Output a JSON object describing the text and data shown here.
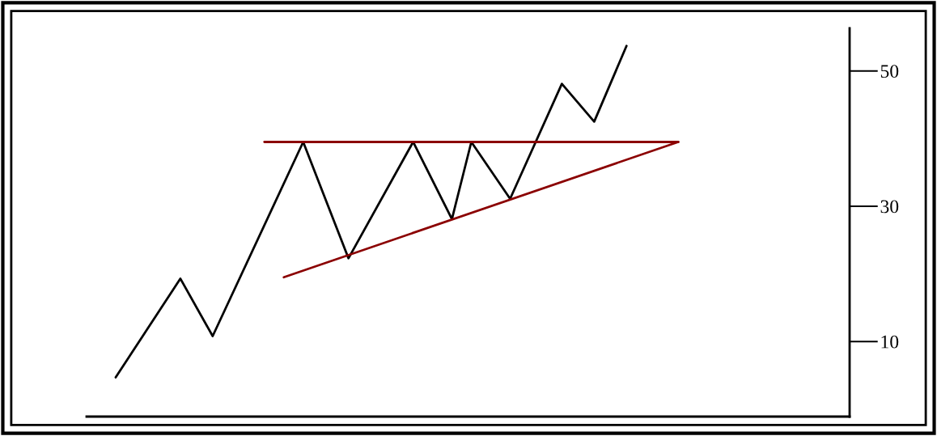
{
  "chart_data": {
    "type": "line",
    "categories": [
      null,
      null,
      null,
      null,
      null,
      null,
      null,
      null,
      null,
      null,
      null,
      null,
      null,
      null,
      null,
      null,
      null,
      null,
      null,
      null,
      null,
      null,
      null,
      null,
      null,
      null,
      null,
      null,
      null,
      null,
      null,
      null,
      null,
      null,
      null,
      null,
      null,
      null,
      null,
      null,
      null,
      null,
      null,
      null,
      null,
      null,
      null,
      null,
      null,
      null,
      null,
      null,
      null,
      null,
      null,
      null,
      null,
      null,
      null,
      null,
      null,
      null,
      null,
      null,
      null,
      null,
      null,
      null,
      null,
      null,
      null,
      null,
      null,
      null,
      null,
      null,
      null,
      null,
      null,
      null,
      null,
      null,
      null,
      null,
      null,
      null,
      null,
      null,
      null,
      null,
      null,
      null,
      null,
      null,
      null,
      null,
      null,
      null,
      null,
      null,
      null,
      null,
      null,
      null,
      null,
      null,
      null,
      null,
      null,
      null,
      null,
      null,
      null,
      null,
      null,
      null,
      null,
      null
    ],
    "series": [
      {
        "color": "#000000",
        "values": [
          null,
          null,
          null,
          null,
          4.7,
          null,
          null,
          null,
          null,
          null,
          null,
          null,
          null,
          null,
          19.3,
          null,
          null,
          null,
          null,
          10.8,
          null,
          null,
          null,
          null,
          null,
          null,
          null,
          null,
          null,
          null,
          null,
          null,
          null,
          39.5,
          null,
          null,
          null,
          null,
          null,
          null,
          22.3,
          null,
          null,
          null,
          null,
          null,
          null,
          null,
          null,
          null,
          39.5,
          null,
          null,
          null,
          null,
          null,
          28.1,
          null,
          null,
          39.5,
          null,
          null,
          null,
          null,
          null,
          31.1,
          null,
          null,
          null,
          null,
          null,
          null,
          null,
          48.1,
          null,
          null,
          null,
          null,
          42.5,
          null,
          null,
          null,
          null,
          53.7,
          null,
          null,
          null,
          null,
          null,
          null,
          null,
          null,
          null,
          null,
          null,
          null,
          null,
          null,
          null,
          null,
          null,
          null,
          null,
          null,
          null,
          null,
          null,
          null,
          null,
          null,
          null,
          null,
          null,
          null,
          null,
          null,
          null,
          null
        ]
      },
      {
        "color": "#8b0000",
        "values": [
          null,
          null,
          null,
          null,
          null,
          null,
          null,
          null,
          null,
          null,
          null,
          null,
          null,
          null,
          null,
          null,
          null,
          null,
          null,
          null,
          null,
          null,
          null,
          null,
          null,
          null,
          null,
          39.5,
          null,
          null,
          null,
          null,
          null,
          null,
          null,
          null,
          null,
          null,
          null,
          null,
          null,
          null,
          null,
          null,
          null,
          null,
          null,
          null,
          null,
          null,
          null,
          null,
          null,
          null,
          null,
          null,
          null,
          null,
          null,
          null,
          null,
          null,
          null,
          null,
          null,
          null,
          null,
          null,
          null,
          null,
          null,
          null,
          null,
          null,
          null,
          null,
          null,
          null,
          null,
          null,
          null,
          null,
          null,
          null,
          null,
          null,
          null,
          null,
          null,
          null,
          null,
          39.5,
          null,
          null,
          null,
          null,
          null,
          null,
          null,
          null,
          null,
          null,
          null,
          null,
          null,
          null,
          null,
          null,
          null,
          null,
          null,
          null,
          null,
          null,
          null,
          null,
          null,
          null
        ]
      },
      {
        "color": "#8b0000",
        "values": [
          null,
          null,
          null,
          null,
          null,
          null,
          null,
          null,
          null,
          null,
          null,
          null,
          null,
          null,
          null,
          null,
          null,
          null,
          null,
          null,
          null,
          null,
          null,
          null,
          null,
          null,
          null,
          null,
          null,
          null,
          19.5,
          null,
          null,
          null,
          null,
          null,
          null,
          null,
          null,
          null,
          null,
          null,
          null,
          null,
          null,
          null,
          null,
          null,
          null,
          null,
          null,
          null,
          null,
          null,
          null,
          null,
          null,
          null,
          null,
          null,
          null,
          null,
          null,
          null,
          null,
          null,
          null,
          null,
          null,
          null,
          null,
          null,
          null,
          null,
          null,
          null,
          null,
          null,
          null,
          null,
          null,
          null,
          null,
          null,
          null,
          null,
          null,
          null,
          null,
          null,
          null,
          39.5,
          null,
          null,
          null,
          null,
          null,
          null,
          null,
          null,
          null,
          null,
          null,
          null,
          null,
          null,
          null,
          null,
          null,
          null,
          null,
          null,
          null,
          null,
          null,
          null,
          null,
          null
        ]
      }
    ],
    "ylim": [
      -1.1,
      56.3
    ],
    "yticks": [
      10,
      30,
      50
    ],
    "tick_labels": "y",
    "line_style": "solid"
  }
}
